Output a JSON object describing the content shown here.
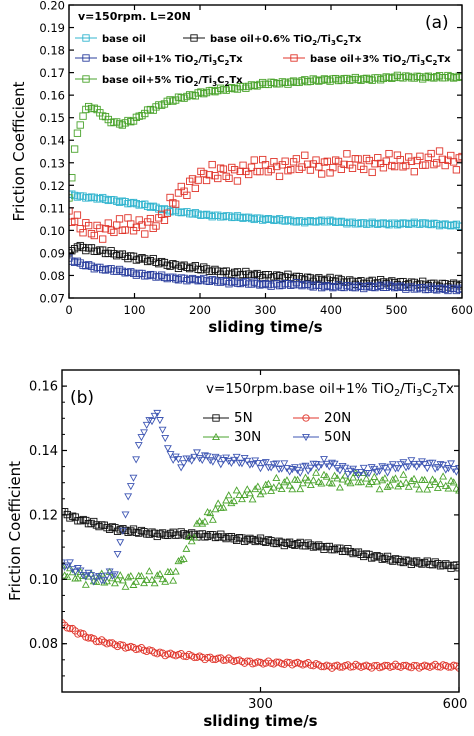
{
  "chart_data": [
    {
      "panel": "(a)",
      "type": "line",
      "title": "v=150rpm. L=20N",
      "xlabel": "sliding time/s",
      "ylabel": "Friction Coefficient",
      "xlim": [
        0,
        600
      ],
      "ylim": [
        0.07,
        0.2
      ],
      "xticks": [
        "0",
        "100",
        "200",
        "300",
        "400",
        "500",
        "600"
      ],
      "yticks": [
        "0.07",
        "0.08",
        "0.09",
        "0.10",
        "0.11",
        "0.12",
        "0.13",
        "0.14",
        "0.15",
        "0.16",
        "0.17",
        "0.18",
        "0.19",
        "0.20"
      ],
      "grid": false,
      "legend_position": "top",
      "series": [
        {
          "name": "base oil",
          "color": "#33b5cf",
          "marker": "square",
          "x": [
            0,
            20,
            50,
            100,
            150,
            200,
            250,
            300,
            350,
            400,
            450,
            500,
            550,
            600
          ],
          "y": [
            0.116,
            0.115,
            0.114,
            0.112,
            0.109,
            0.107,
            0.106,
            0.105,
            0.104,
            0.104,
            0.103,
            0.103,
            0.103,
            0.102
          ]
        },
        {
          "name": "base oil+0.6% TiO2/Ti3C2Tx",
          "color": "#111111",
          "marker": "square",
          "x": [
            0,
            10,
            30,
            60,
            100,
            150,
            200,
            250,
            300,
            350,
            400,
            450,
            500,
            550,
            600
          ],
          "y": [
            0.089,
            0.093,
            0.092,
            0.09,
            0.088,
            0.085,
            0.083,
            0.081,
            0.08,
            0.079,
            0.078,
            0.077,
            0.077,
            0.076,
            0.076
          ]
        },
        {
          "name": "base oil+1% TiO2/Ti3C2Tx",
          "color": "#2b3f9e",
          "marker": "square",
          "x": [
            0,
            20,
            50,
            100,
            150,
            200,
            250,
            300,
            350,
            400,
            450,
            500,
            550,
            600
          ],
          "y": [
            0.087,
            0.085,
            0.083,
            0.081,
            0.079,
            0.078,
            0.077,
            0.076,
            0.076,
            0.075,
            0.075,
            0.075,
            0.074,
            0.074
          ]
        },
        {
          "name": "base oil+3% TiO2/Ti3C2Tx",
          "color": "#e0352b",
          "marker": "square",
          "x": [
            0,
            10,
            20,
            40,
            60,
            100,
            140,
            170,
            200,
            250,
            300,
            350,
            400,
            450,
            500,
            550,
            600
          ],
          "y": [
            0.108,
            0.103,
            0.101,
            0.1,
            0.101,
            0.102,
            0.104,
            0.117,
            0.124,
            0.126,
            0.128,
            0.129,
            0.129,
            0.13,
            0.13,
            0.131,
            0.131
          ]
        },
        {
          "name": "base oil+5% TiO2/Ti3C2Tx",
          "color": "#4aa32c",
          "marker": "square",
          "x": [
            0,
            5,
            10,
            20,
            30,
            45,
            60,
            80,
            100,
            120,
            150,
            200,
            250,
            300,
            350,
            400,
            450,
            500,
            550,
            600
          ],
          "y": [
            0.115,
            0.125,
            0.14,
            0.15,
            0.155,
            0.153,
            0.149,
            0.147,
            0.149,
            0.153,
            0.157,
            0.161,
            0.163,
            0.165,
            0.166,
            0.167,
            0.167,
            0.168,
            0.168,
            0.168
          ]
        }
      ],
      "label": "(a)"
    },
    {
      "panel": "(b)",
      "type": "line",
      "title": "v=150rpm.base oil+1% TiO2/Ti3C2Tx",
      "xlabel": "sliding time/s",
      "ylabel": "Friction Coefficient",
      "xlim": [
        0,
        600
      ],
      "ylim": [
        0.065,
        0.165
      ],
      "xticks": [
        "300",
        "600"
      ],
      "yticks": [
        "0.08",
        "0.10",
        "0.12",
        "0.14",
        "0.16"
      ],
      "grid": false,
      "legend_position": "top-right",
      "series": [
        {
          "name": "5N",
          "color": "#111111",
          "marker": "square",
          "x": [
            0,
            20,
            50,
            100,
            150,
            200,
            250,
            300,
            350,
            400,
            450,
            500,
            550,
            600
          ],
          "y": [
            0.121,
            0.119,
            0.117,
            0.115,
            0.114,
            0.114,
            0.113,
            0.112,
            0.111,
            0.11,
            0.108,
            0.106,
            0.105,
            0.104
          ]
        },
        {
          "name": "20N",
          "color": "#e0352b",
          "marker": "circle",
          "x": [
            0,
            20,
            50,
            100,
            150,
            200,
            250,
            300,
            350,
            400,
            450,
            500,
            550,
            600
          ],
          "y": [
            0.086,
            0.084,
            0.081,
            0.079,
            0.077,
            0.076,
            0.075,
            0.074,
            0.074,
            0.073,
            0.073,
            0.073,
            0.073,
            0.073
          ]
        },
        {
          "name": "30N",
          "color": "#4aa32c",
          "marker": "triangle-up",
          "x": [
            0,
            30,
            60,
            100,
            140,
            170,
            190,
            210,
            240,
            270,
            300,
            350,
            400,
            450,
            500,
            550,
            600
          ],
          "y": [
            0.102,
            0.101,
            0.1,
            0.1,
            0.1,
            0.102,
            0.11,
            0.118,
            0.123,
            0.126,
            0.128,
            0.13,
            0.131,
            0.131,
            0.13,
            0.13,
            0.129
          ]
        },
        {
          "name": "50N",
          "color": "#3e56b3",
          "marker": "triangle-down",
          "x": [
            0,
            30,
            60,
            80,
            100,
            120,
            140,
            150,
            160,
            180,
            200,
            250,
            300,
            350,
            400,
            450,
            500,
            550,
            600
          ],
          "y": [
            0.105,
            0.102,
            0.1,
            0.102,
            0.125,
            0.145,
            0.151,
            0.149,
            0.14,
            0.136,
            0.138,
            0.137,
            0.136,
            0.134,
            0.136,
            0.133,
            0.135,
            0.136,
            0.134
          ]
        }
      ],
      "label": "(b)"
    }
  ]
}
